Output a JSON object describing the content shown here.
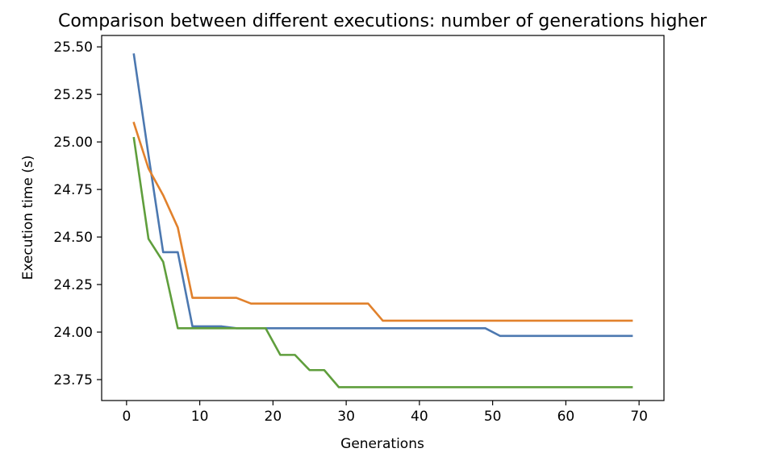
{
  "chart_data": {
    "type": "line",
    "title": "Comparison between different executions: number of generations higher",
    "xlabel": "Generations",
    "ylabel": "Execution time (s)",
    "xlim": [
      -3.4,
      73.4
    ],
    "ylim": [
      23.64,
      25.56
    ],
    "xticks": [
      0,
      10,
      20,
      30,
      40,
      50,
      60,
      70
    ],
    "xtick_labels": [
      "0",
      "10",
      "20",
      "30",
      "40",
      "50",
      "60",
      "70"
    ],
    "yticks": [
      23.75,
      24.0,
      24.25,
      24.5,
      24.75,
      25.0,
      25.25,
      25.5
    ],
    "ytick_labels": [
      "23.75",
      "24.00",
      "24.25",
      "24.50",
      "24.75",
      "25.00",
      "25.25",
      "25.50"
    ],
    "grid": false,
    "legend": "none",
    "series": [
      {
        "color": "#4c78b0",
        "x": [
          1,
          3,
          5,
          7,
          9,
          11,
          13,
          15,
          17,
          19,
          21,
          23,
          25,
          27,
          29,
          31,
          33,
          35,
          37,
          39,
          41,
          43,
          45,
          47,
          49,
          51,
          53,
          55,
          57,
          59,
          61,
          63,
          65,
          67,
          69
        ],
        "y": [
          25.46,
          24.93,
          24.42,
          24.42,
          24.03,
          24.03,
          24.03,
          24.02,
          24.02,
          24.02,
          24.02,
          24.02,
          24.02,
          24.02,
          24.02,
          24.02,
          24.02,
          24.02,
          24.02,
          24.02,
          24.02,
          24.02,
          24.02,
          24.02,
          24.02,
          23.98,
          23.98,
          23.98,
          23.98,
          23.98,
          23.98,
          23.98,
          23.98,
          23.98,
          23.98
        ]
      },
      {
        "color": "#e1812c",
        "x": [
          1,
          3,
          5,
          7,
          9,
          11,
          13,
          15,
          17,
          19,
          21,
          23,
          25,
          27,
          29,
          31,
          33,
          35,
          37,
          39,
          41,
          43,
          45,
          47,
          49,
          51,
          53,
          55,
          57,
          59,
          61,
          63,
          65,
          67,
          69
        ],
        "y": [
          25.1,
          24.86,
          24.72,
          24.55,
          24.18,
          24.18,
          24.18,
          24.18,
          24.15,
          24.15,
          24.15,
          24.15,
          24.15,
          24.15,
          24.15,
          24.15,
          24.15,
          24.06,
          24.06,
          24.06,
          24.06,
          24.06,
          24.06,
          24.06,
          24.06,
          24.06,
          24.06,
          24.06,
          24.06,
          24.06,
          24.06,
          24.06,
          24.06,
          24.06,
          24.06
        ]
      },
      {
        "color": "#5f9e3c",
        "x": [
          1,
          3,
          5,
          7,
          9,
          11,
          13,
          15,
          17,
          19,
          21,
          23,
          25,
          27,
          29,
          31,
          33,
          35,
          37,
          39,
          41,
          43,
          45,
          47,
          49,
          51,
          53,
          55,
          57,
          59,
          61,
          63,
          65,
          67,
          69
        ],
        "y": [
          25.02,
          24.49,
          24.37,
          24.02,
          24.02,
          24.02,
          24.02,
          24.02,
          24.02,
          24.02,
          23.88,
          23.88,
          23.8,
          23.8,
          23.71,
          23.71,
          23.71,
          23.71,
          23.71,
          23.71,
          23.71,
          23.71,
          23.71,
          23.71,
          23.71,
          23.71,
          23.71,
          23.71,
          23.71,
          23.71,
          23.71,
          23.71,
          23.71,
          23.71,
          23.71
        ]
      }
    ]
  }
}
